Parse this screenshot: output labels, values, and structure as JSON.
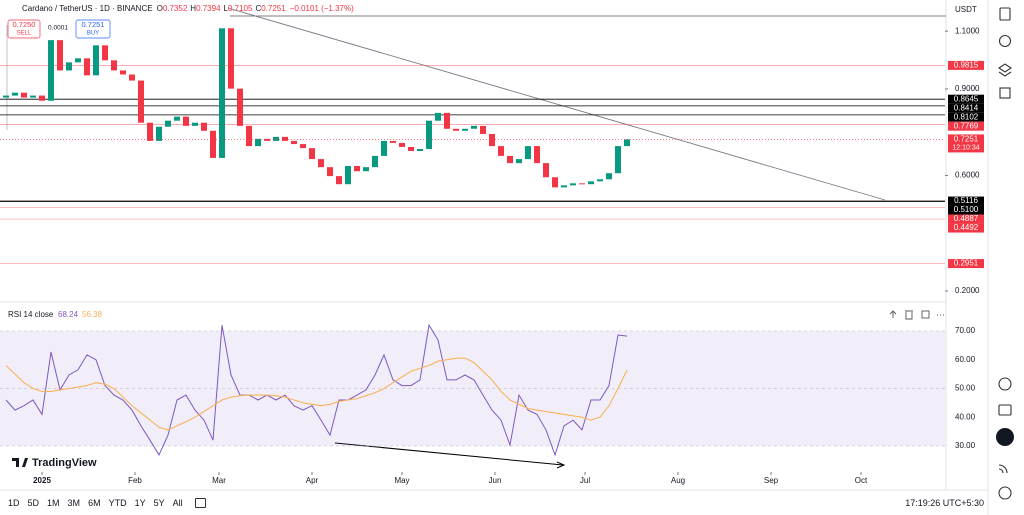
{
  "header": {
    "symbol": "Cardano / TetherUS · 1D · BINANCE",
    "ohlc": [
      {
        "label": "O",
        "value": "0.7352"
      },
      {
        "label": "H",
        "value": "0.7394"
      },
      {
        "label": "L",
        "value": "0.7105"
      },
      {
        "label": "C",
        "value": "0.7251"
      }
    ],
    "change": "−0.0101 (−1.37%)",
    "sell": {
      "price": "0.7250",
      "label": "SELL"
    },
    "spread": "0.0001",
    "buy": {
      "price": "0.7251",
      "label": "BUY"
    }
  },
  "chart_data": [
    {
      "type": "candlestick",
      "y_unit": "USDT",
      "open": 0.87,
      "x": [
        -12,
        -9,
        -6,
        -3,
        0,
        3,
        6,
        9,
        12,
        15,
        18,
        21,
        24,
        27,
        30,
        33,
        36,
        39,
        42,
        45,
        48,
        51,
        54,
        57,
        60,
        63,
        66,
        69,
        72,
        75,
        78,
        81,
        84,
        87,
        90,
        93,
        96,
        99,
        102,
        105,
        108,
        111,
        114,
        117,
        120,
        123,
        126,
        129,
        132,
        135,
        138,
        141,
        144,
        147,
        150,
        153,
        156,
        159,
        162,
        165,
        168,
        171,
        174,
        177,
        180,
        183,
        186,
        189,
        192,
        195
      ],
      "values": [
        0.877,
        0.887,
        0.87,
        0.877,
        0.859,
        1.069,
        0.964,
        0.992,
        1.006,
        0.947,
        1.051,
        0.999,
        0.964,
        0.95,
        0.929,
        0.783,
        0.72,
        0.769,
        0.79,
        0.804,
        0.772,
        0.783,
        0.755,
        0.661,
        1.11,
        0.901,
        0.772,
        0.702,
        0.727,
        0.72,
        0.734,
        0.72,
        0.709,
        0.695,
        0.657,
        0.629,
        0.598,
        0.57,
        0.633,
        0.615,
        0.629,
        0.668,
        0.72,
        0.713,
        0.699,
        0.685,
        0.692,
        0.79,
        0.817,
        0.762,
        0.755,
        0.762,
        0.772,
        0.744,
        0.702,
        0.668,
        0.643,
        0.657,
        0.702,
        0.643,
        0.594,
        0.559,
        0.566,
        0.573,
        0.57,
        0.58,
        0.587,
        0.608,
        0.702,
        0.7251
      ],
      "up_color": "#089981",
      "down_color": "#f23645",
      "xlim": [
        -14,
        301
      ],
      "xticks": [
        {
          "value": 0,
          "label": "2025"
        },
        {
          "value": 31,
          "label": "Feb"
        },
        {
          "value": 59,
          "label": "Mar"
        },
        {
          "value": 90,
          "label": "Apr"
        },
        {
          "value": 120,
          "label": "May"
        },
        {
          "value": 151,
          "label": "Jun"
        },
        {
          "value": 181,
          "label": "Jul"
        },
        {
          "value": 212,
          "label": "Aug"
        },
        {
          "value": 243,
          "label": "Sep"
        },
        {
          "value": 273,
          "label": "Oct"
        }
      ],
      "ylim": [
        0.162,
        1.208
      ],
      "yticks": [
        {
          "value": 1.1,
          "label": "1.1000"
        },
        {
          "value": 0.9,
          "label": "0.9000"
        },
        {
          "value": 0.6,
          "label": "0.6000"
        },
        {
          "value": 0.2,
          "label": "0.2000"
        }
      ],
      "levels": [
        {
          "value": 0.9815,
          "color": "#f23645"
        },
        {
          "value": 0.8645,
          "color": "#000000"
        },
        {
          "value": 0.8414,
          "color": "#000000"
        },
        {
          "value": 0.8102,
          "color": "#000000"
        },
        {
          "value": 0.7769,
          "color": "#f23645"
        },
        {
          "value": 0.5116,
          "color": "#000000"
        },
        {
          "value": 0.51,
          "label": "0.5100",
          "color": "#000000"
        },
        {
          "value": 0.4887,
          "color": "#f23645"
        },
        {
          "value": 0.4492,
          "color": "#f23645"
        },
        {
          "value": 0.2951,
          "color": "#f23645"
        }
      ],
      "countdown": "12:10:34",
      "grid": false
    },
    {
      "type": "line",
      "title": "RSI 14 close",
      "series": [
        {
          "color": "#7e57c2",
          "values": [
            46,
            42.5,
            44,
            46,
            41,
            62.7,
            49.5,
            54.7,
            56.5,
            61.7,
            60,
            51,
            47.7,
            46,
            42.5,
            37,
            32,
            26.9,
            33.8,
            46,
            47.7,
            42.5,
            39,
            32,
            72,
            54.7,
            47.7,
            47.7,
            46,
            47.7,
            46,
            47.7,
            44,
            42.5,
            44,
            39,
            33.8,
            46,
            46,
            47.7,
            49.5,
            54.7,
            61.7,
            53,
            51,
            51,
            53,
            72,
            66.9,
            53,
            53,
            54.7,
            53,
            47.7,
            42.5,
            39,
            30.3,
            47.7,
            42.5,
            41,
            35.6,
            26.9,
            37,
            39,
            35.6,
            46,
            46,
            51,
            68.6,
            68.24
          ]
        },
        {
          "color": "#f7b35b",
          "values": [
            58,
            55,
            52,
            50,
            49,
            49,
            49.5,
            50,
            50.5,
            51,
            52,
            51.5,
            50,
            47,
            44,
            41.5,
            39,
            36.5,
            35.6,
            37,
            38.5,
            40,
            42,
            44,
            46,
            47,
            47.5,
            47.7,
            47.7,
            47.7,
            47.5,
            47,
            46,
            45,
            44.5,
            44,
            44.5,
            45.5,
            46,
            46.5,
            47.5,
            48.5,
            50,
            52,
            54,
            56,
            57,
            58,
            59.5,
            60,
            60.5,
            60.6,
            59,
            56,
            53,
            49,
            46,
            44.5,
            43,
            42.5,
            42,
            41.5,
            41,
            40.5,
            40,
            39,
            40,
            44,
            50,
            56.38
          ]
        }
      ],
      "ylim": [
        21.65,
        79.04
      ],
      "yticks": [
        {
          "value": 70,
          "label": "70.00"
        },
        {
          "value": 60,
          "label": "60.00"
        },
        {
          "value": 50,
          "label": "50.00"
        },
        {
          "value": 40,
          "label": "40.00"
        },
        {
          "value": 30,
          "label": "30.00"
        }
      ],
      "band": [
        30,
        70
      ],
      "band_color": "#7e57c2"
    }
  ],
  "brand": "TradingView",
  "toolbar": {
    "ranges": [
      "1D",
      "5D",
      "1M",
      "3M",
      "6M",
      "YTD",
      "1Y",
      "5Y",
      "All"
    ],
    "clock": "17:19:26 UTC+5:30"
  }
}
